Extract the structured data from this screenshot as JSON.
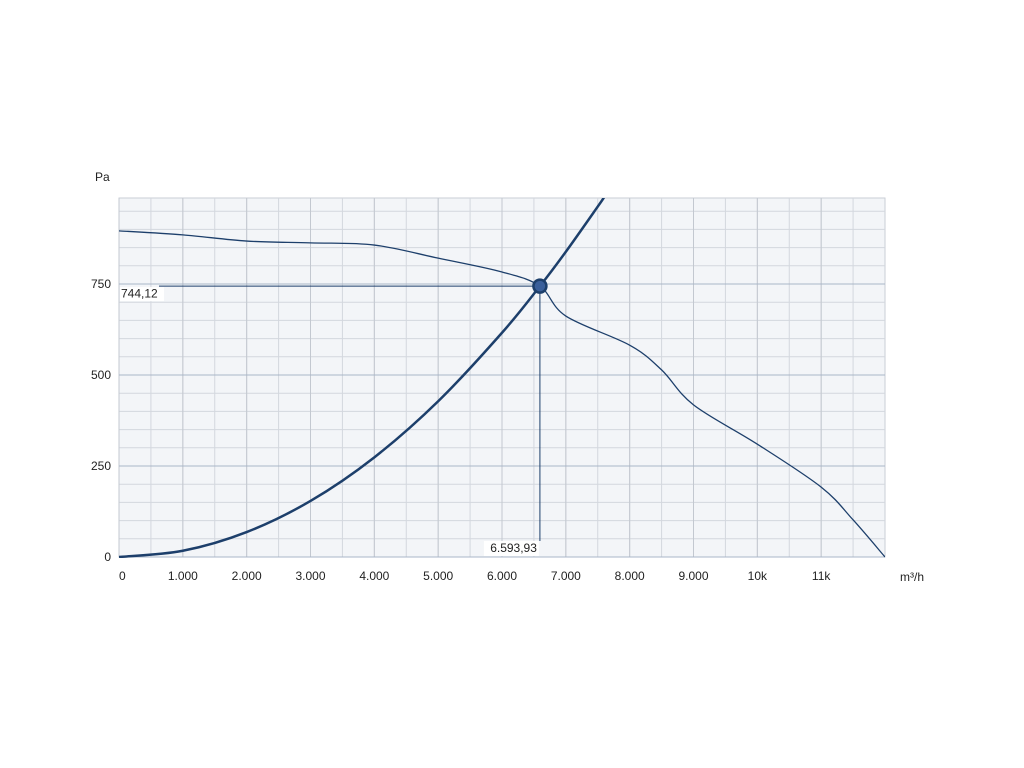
{
  "chart_data": {
    "type": "line",
    "x_label": "m³/h",
    "y_label": "Pa",
    "xlim": [
      0,
      12000
    ],
    "ylim": [
      0,
      1000
    ],
    "xticks": [
      0,
      {
        "value": 1000,
        "label": "1.000"
      },
      {
        "value": 2000,
        "label": "2.000"
      },
      {
        "value": 3000,
        "label": "3.000"
      },
      {
        "value": 4000,
        "label": "4.000"
      },
      {
        "value": 5000,
        "label": "5.000"
      },
      {
        "value": 6000,
        "label": "6.000"
      },
      {
        "value": 7000,
        "label": "7.000"
      },
      {
        "value": 8000,
        "label": "8.000"
      },
      {
        "value": 9000,
        "label": "9.000"
      },
      {
        "value": 10000,
        "label": "10k"
      },
      {
        "value": 11000,
        "label": "11k"
      }
    ],
    "yticks": [
      0,
      250,
      500,
      750
    ],
    "grid": true,
    "minor_grid": true,
    "series": [
      {
        "color": "#1d3f6b",
        "x": [
          0,
          1000,
          2000,
          3000,
          4000,
          5000,
          6000,
          6593.93,
          7000,
          8000,
          8500,
          9000,
          10000,
          11000,
          11500,
          12000
        ],
        "values": [
          896,
          885,
          868,
          863,
          857,
          821,
          783,
          744.12,
          662,
          582,
          514,
          418,
          310,
          192,
          102,
          0
        ]
      },
      {
        "color": "#1d3f6b",
        "x": [
          0,
          1000,
          2000,
          3000,
          4000,
          5000,
          6000,
          6593.93,
          7000,
          7500,
          7600
        ],
        "values": [
          0,
          17.1,
          68.5,
          154.0,
          273.8,
          427.9,
          616.1,
          744.12,
          838.6,
          962.7,
          988.5
        ]
      }
    ],
    "operating_point": {
      "x": 6593.93,
      "y": 744.12,
      "x_label": "6.593,93",
      "y_label": "744,12",
      "color": "#1d3f6b"
    }
  }
}
